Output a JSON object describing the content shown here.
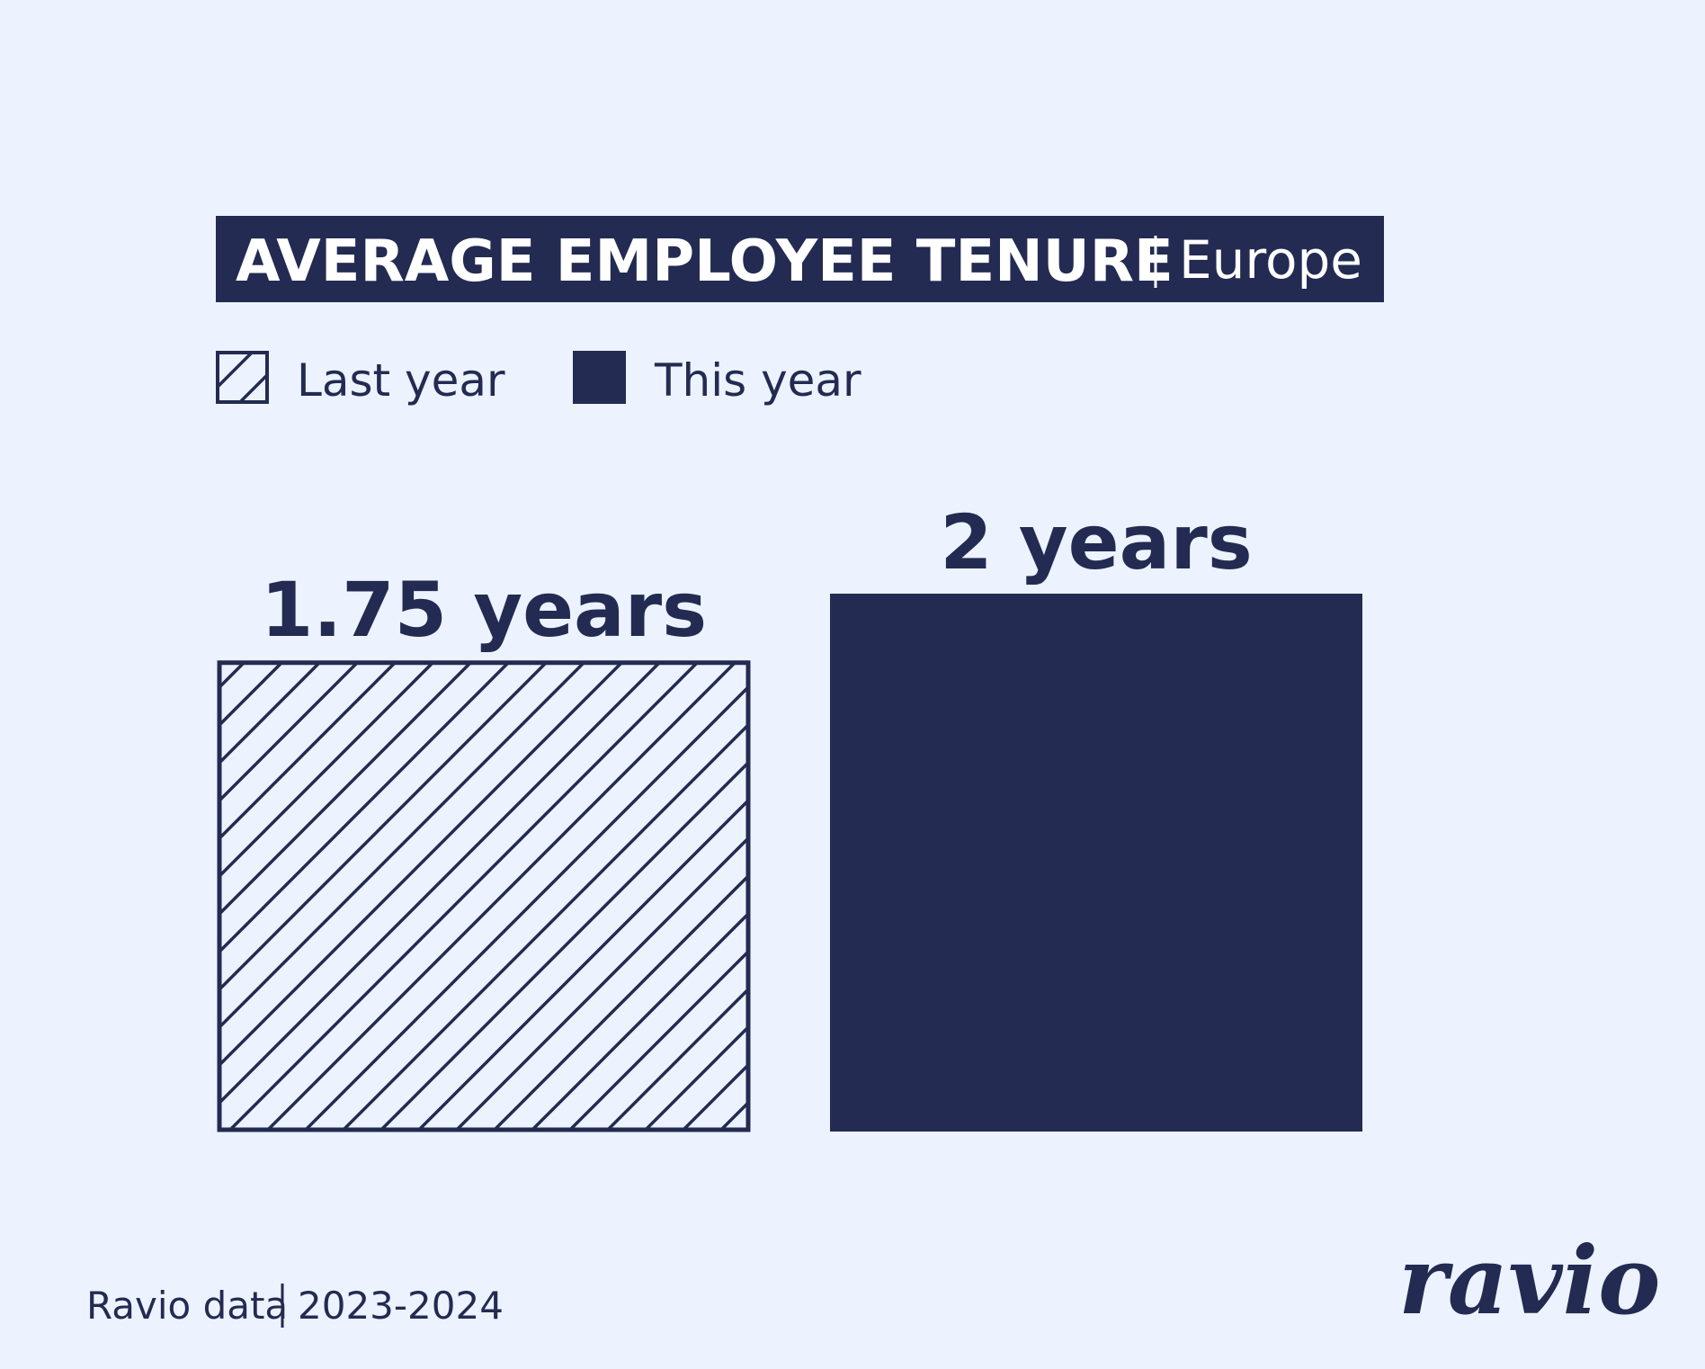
{
  "title": {
    "main": "AVERAGE EMPLOYEE TENURE",
    "region": "Europe"
  },
  "legend": {
    "items": [
      {
        "label": "Last year",
        "style": "hatched"
      },
      {
        "label": "This year",
        "style": "solid"
      }
    ],
    "placement": "top-left"
  },
  "chart_data": {
    "type": "bar",
    "categories": [
      "Last year",
      "This year"
    ],
    "values": [
      1.75,
      2
    ],
    "data_labels": [
      "1.75 years",
      "2 years"
    ],
    "ylim": [
      0,
      2
    ],
    "grid": false,
    "axes_visible": false
  },
  "footer": {
    "source": "Ravio data",
    "period": "2023-2024"
  },
  "logo": {
    "text": "ravio"
  },
  "colors": {
    "background": "#ecf3ff",
    "navy": "#232b52",
    "white": "#ffffff"
  }
}
